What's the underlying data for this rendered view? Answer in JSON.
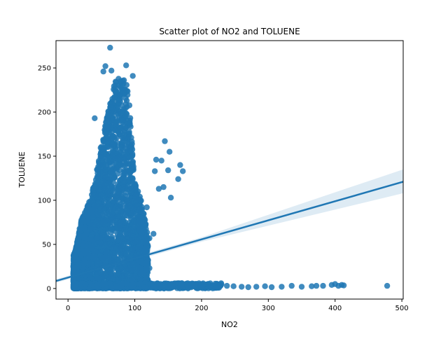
{
  "chart_data": {
    "type": "scatter",
    "title": "Scatter plot of NO2 and TOLUENE",
    "xlabel": "NO2",
    "ylabel": "TOLUENE",
    "xlim": [
      -18,
      502
    ],
    "ylim": [
      -12,
      281
    ],
    "xticks": [
      0,
      100,
      200,
      300,
      400,
      500
    ],
    "yticks": [
      0,
      50,
      100,
      150,
      200,
      250
    ],
    "grid": false,
    "legend": false,
    "point_color": "#1f77b4",
    "point_alpha": 0.85,
    "regression": {
      "color": "#1f77b4",
      "ci_color": "#1f77b4",
      "ci_alpha": 0.15,
      "x": [
        -18,
        502
      ],
      "y": [
        8.5,
        121
      ],
      "ci_low_end": 108,
      "ci_high_end": 135
    },
    "cluster_envelope": {
      "x": [
        10,
        20,
        30,
        40,
        50,
        60,
        70,
        80,
        90,
        100,
        110,
        120
      ],
      "ymax": [
        40,
        78,
        95,
        120,
        165,
        200,
        235,
        240,
        230,
        120,
        100,
        60
      ]
    },
    "tail_points": [
      [
        135,
        5
      ],
      [
        142,
        3
      ],
      [
        155,
        2
      ],
      [
        168,
        4
      ],
      [
        180,
        2
      ],
      [
        190,
        3
      ],
      [
        200,
        2
      ],
      [
        212,
        1.5
      ],
      [
        225,
        2
      ],
      [
        238,
        3
      ],
      [
        248,
        2.5
      ],
      [
        260,
        2
      ],
      [
        270,
        1.5
      ],
      [
        282,
        2
      ],
      [
        295,
        2.5
      ],
      [
        305,
        1.5
      ],
      [
        320,
        2
      ],
      [
        335,
        3
      ],
      [
        350,
        2
      ],
      [
        365,
        2.5
      ],
      [
        372,
        3
      ],
      [
        382,
        3
      ],
      [
        395,
        4
      ],
      [
        400,
        5
      ],
      [
        405,
        3
      ],
      [
        410,
        4
      ],
      [
        413,
        3.5
      ],
      [
        478,
        3
      ]
    ],
    "outlier_points": [
      [
        63,
        273
      ],
      [
        56,
        252
      ],
      [
        53,
        246
      ],
      [
        65,
        247
      ],
      [
        87,
        253
      ],
      [
        97,
        241
      ],
      [
        40,
        193
      ],
      [
        145,
        167
      ],
      [
        152,
        155
      ],
      [
        132,
        146
      ],
      [
        140,
        145
      ],
      [
        130,
        133
      ],
      [
        150,
        134
      ],
      [
        168,
        140
      ],
      [
        172,
        133
      ],
      [
        165,
        124
      ],
      [
        143,
        115
      ],
      [
        136,
        113
      ],
      [
        154,
        103
      ],
      [
        118,
        92
      ],
      [
        112,
        73
      ],
      [
        108,
        65
      ],
      [
        128,
        62
      ],
      [
        122,
        57
      ],
      [
        104,
        46
      ],
      [
        115,
        42
      ],
      [
        120,
        32
      ],
      [
        122,
        23
      ],
      [
        87,
        22
      ]
    ]
  }
}
